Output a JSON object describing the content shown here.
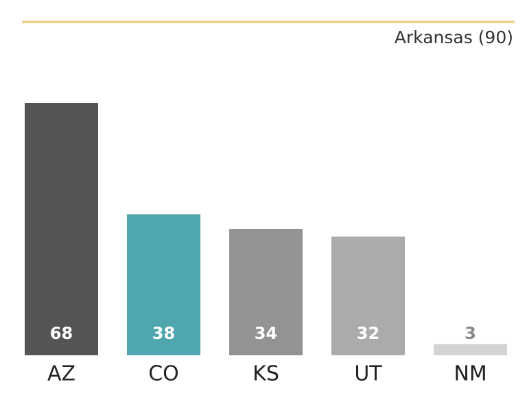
{
  "chart_data": {
    "type": "bar",
    "title": "Arkansas (90)",
    "categories": [
      "AZ",
      "CO",
      "KS",
      "UT",
      "NM"
    ],
    "values": [
      68,
      38,
      34,
      32,
      3
    ],
    "colors": [
      "#555555",
      "#4fa6ae",
      "#939393",
      "#ababab",
      "#d3d3d3"
    ],
    "rule_color": "#eac97a"
  }
}
